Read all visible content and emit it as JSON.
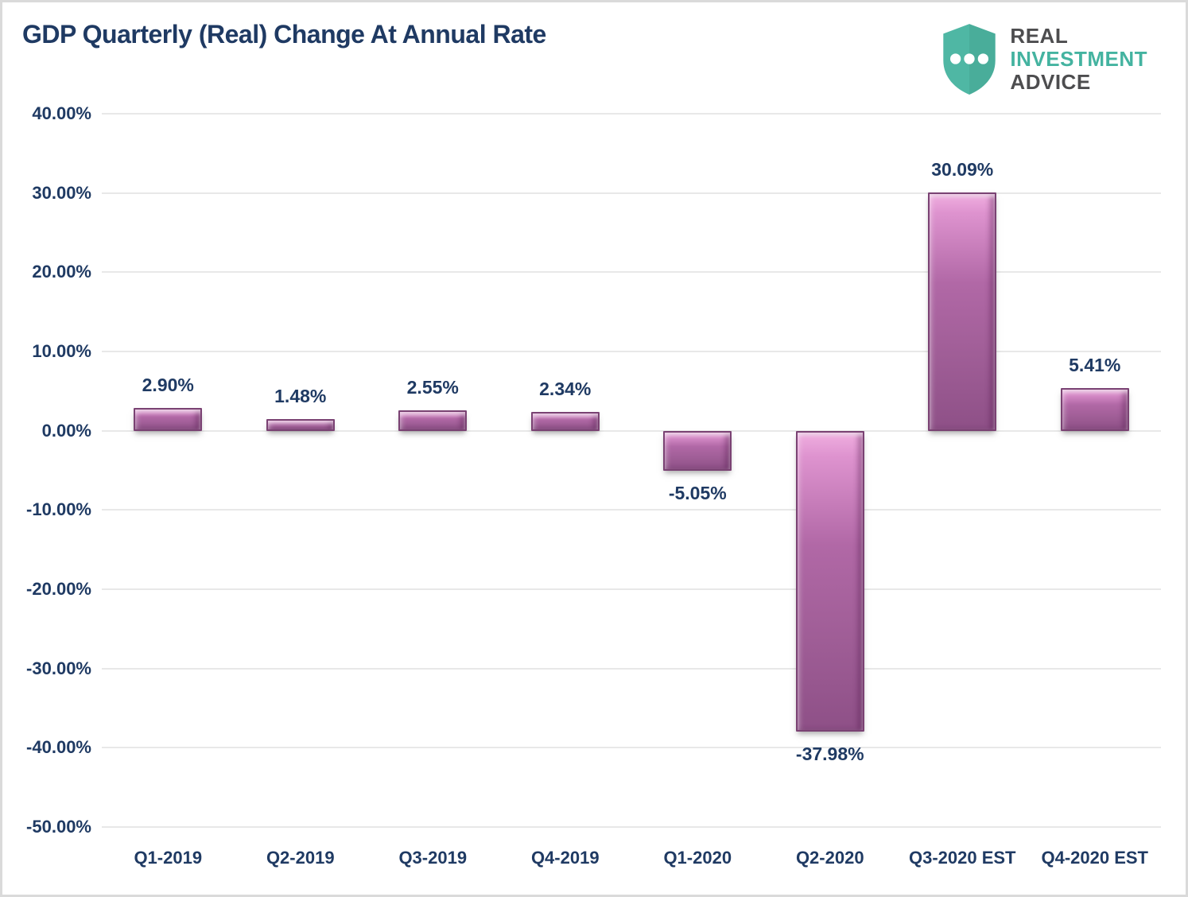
{
  "title": "GDP Quarterly (Real) Change At Annual Rate",
  "logo": {
    "shield_icon": "shield-with-three-dots",
    "line1": "REAL",
    "line2": "INVESTMENT",
    "line3": "ADVICE",
    "teal": "#44B3A0",
    "gray": "#4D4D4F",
    "shield_fill": "#4FB7A4"
  },
  "chart_data": {
    "type": "bar",
    "title": "GDP Quarterly (Real) Change At Annual Rate",
    "categories": [
      "Q1-2019",
      "Q2-2019",
      "Q3-2019",
      "Q4-2019",
      "Q1-2020",
      "Q2-2020",
      "Q3-2020 EST",
      "Q4-2020 EST"
    ],
    "values": [
      2.9,
      1.48,
      2.55,
      2.34,
      -5.05,
      -37.98,
      30.09,
      5.41
    ],
    "data_labels": [
      "2.90%",
      "1.48%",
      "2.55%",
      "2.34%",
      "-5.05%",
      "-37.98%",
      "30.09%",
      "5.41%"
    ],
    "xlabel": "",
    "ylabel": "",
    "ylim": [
      -50,
      40
    ],
    "ytick_step": 10,
    "yticks": [
      40,
      30,
      20,
      10,
      0,
      -10,
      -20,
      -30,
      -40,
      -50
    ],
    "ytick_labels": [
      "40.00%",
      "30.00%",
      "20.00%",
      "10.00%",
      "0.00%",
      "-10.00%",
      "-20.00%",
      "-30.00%",
      "-40.00%",
      "-50.00%"
    ],
    "grid": true,
    "legend": false,
    "colors": {
      "bar_light": "#F0AEE0",
      "bar_mid": "#B168A6",
      "bar_dark": "#8E5087",
      "bar_border": "#7A4273",
      "label_color": "#1F3A63",
      "grid_color": "#E8E8E8",
      "title_color": "#1F3A63"
    }
  }
}
